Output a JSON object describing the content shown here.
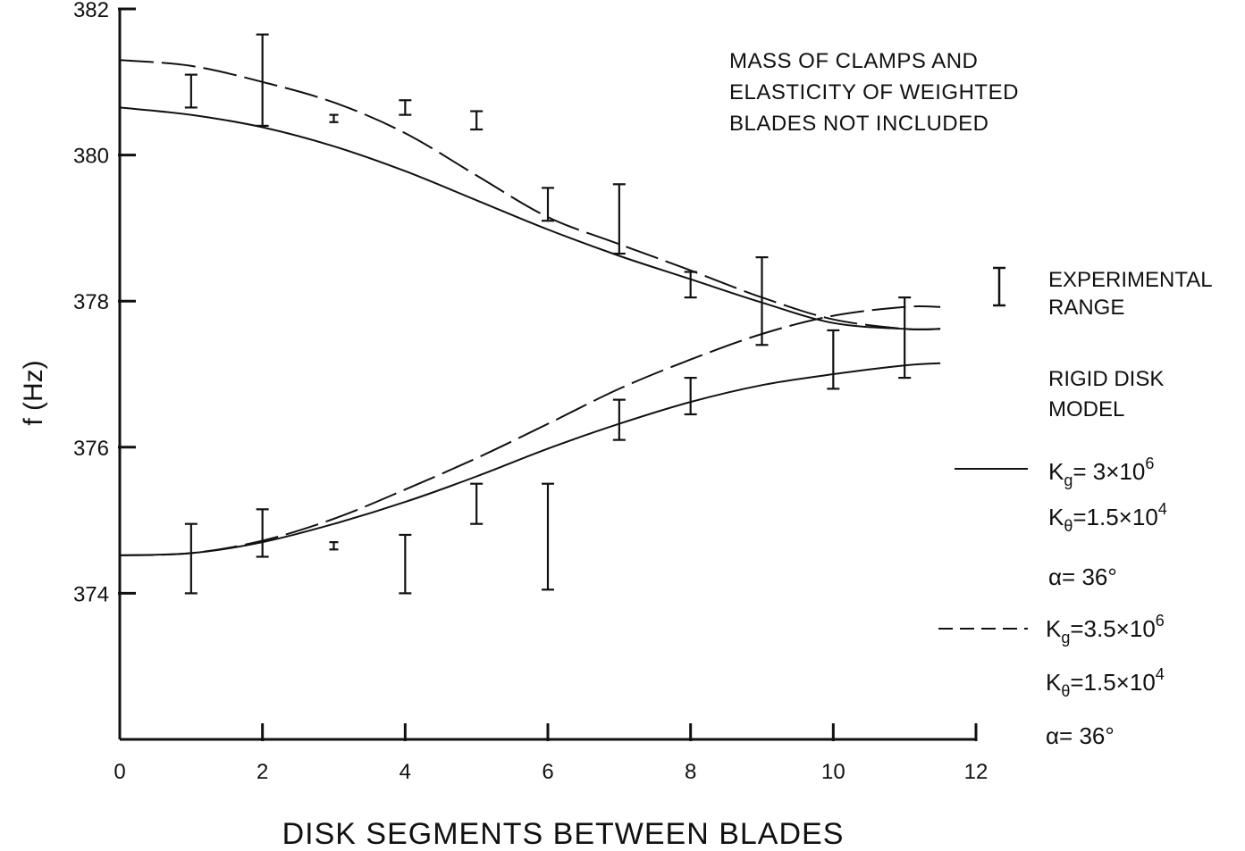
{
  "chart_data": {
    "type": "line",
    "title": "",
    "xlabel": "DISK SEGMENTS BETWEEN BLADES",
    "ylabel": "f (Hz)",
    "xlim": [
      0,
      12
    ],
    "ylim": [
      372,
      382
    ],
    "x_ticks": [
      0,
      2,
      4,
      6,
      8,
      10,
      12
    ],
    "x_tick_labels": [
      "0",
      "2",
      "4",
      "6",
      "8",
      "10",
      "12"
    ],
    "y_ticks": [
      374,
      376,
      378,
      380,
      382
    ],
    "y_tick_labels": [
      "374",
      "376",
      "378",
      "380",
      "382"
    ],
    "grid": false,
    "annotation_lines": [
      "MASS OF CLAMPS AND",
      "ELASTICITY OF WEIGHTED",
      "BLADES NOT INCLUDED"
    ],
    "legend": {
      "placement": "right",
      "experimental": [
        "EXPERIMENTAL",
        "RANGE"
      ],
      "model_heading": [
        "RIGID DISK",
        "MODEL"
      ],
      "solid": {
        "line_style": "solid",
        "params": [
          {
            "symbol": "K",
            "sub": "g",
            "text": "= 3×10",
            "sup": "6"
          },
          {
            "symbol": "K",
            "sub": "θ",
            "text": "=1.5×10",
            "sup": "4"
          },
          {
            "symbol": "α",
            "sub": "",
            "text": "= 36°",
            "sup": ""
          }
        ]
      },
      "dashed": {
        "line_style": "dashed",
        "params": [
          {
            "symbol": "K",
            "sub": "g",
            "text": "=3.5×10",
            "sup": "6"
          },
          {
            "symbol": "K",
            "sub": "θ",
            "text": "=1.5×10",
            "sup": "4"
          },
          {
            "symbol": "α",
            "sub": "",
            "text": "= 36°",
            "sup": ""
          }
        ]
      }
    },
    "series": [
      {
        "line_style": "solid",
        "x": [
          0,
          1,
          2,
          3,
          4,
          5,
          6,
          7,
          8,
          9,
          10,
          11,
          11.5
        ],
        "y": [
          380.65,
          380.55,
          380.38,
          380.12,
          379.78,
          379.38,
          378.98,
          378.62,
          378.3,
          377.98,
          377.7,
          377.62,
          377.62
        ]
      },
      {
        "line_style": "dashed",
        "x": [
          0,
          1,
          2,
          3,
          4,
          5,
          6,
          7,
          8,
          9,
          10,
          11,
          11.5
        ],
        "y": [
          381.3,
          381.22,
          381.0,
          380.72,
          380.3,
          379.72,
          379.15,
          378.78,
          378.42,
          378.05,
          377.75,
          377.62,
          377.62
        ]
      },
      {
        "line_style": "solid",
        "x": [
          0,
          1,
          2,
          3,
          4,
          5,
          6,
          7,
          8,
          9,
          10,
          11,
          11.5
        ],
        "y": [
          374.52,
          374.55,
          374.7,
          374.95,
          375.25,
          375.6,
          375.98,
          376.32,
          376.62,
          376.85,
          377.0,
          377.12,
          377.15
        ]
      },
      {
        "line_style": "dashed",
        "x": [
          0,
          1,
          2,
          3,
          4,
          5,
          6,
          7,
          8,
          9,
          10,
          11,
          11.5
        ],
        "y": [
          374.52,
          374.55,
          374.72,
          375.02,
          375.42,
          375.85,
          376.32,
          376.8,
          377.2,
          377.55,
          377.8,
          377.92,
          377.92
        ]
      }
    ],
    "experimental_ranges": [
      {
        "x": 1,
        "low": 380.65,
        "high": 381.1
      },
      {
        "x": 2,
        "low": 380.4,
        "high": 381.65
      },
      {
        "x": 3,
        "low": 380.45,
        "high": 380.55
      },
      {
        "x": 4,
        "low": 380.55,
        "high": 380.75
      },
      {
        "x": 5,
        "low": 380.35,
        "high": 380.6
      },
      {
        "x": 6,
        "low": 379.1,
        "high": 379.55
      },
      {
        "x": 7,
        "low": 378.65,
        "high": 379.6
      },
      {
        "x": 8,
        "low": 378.05,
        "high": 378.4
      },
      {
        "x": 9,
        "low": 377.4,
        "high": 378.6
      },
      {
        "x": 10,
        "low": 376.8,
        "high": 377.6
      },
      {
        "x": 11,
        "low": 376.95,
        "high": 378.05
      },
      {
        "x": 1,
        "low": 374.0,
        "high": 374.95
      },
      {
        "x": 2,
        "low": 374.5,
        "high": 375.15
      },
      {
        "x": 3,
        "low": 374.6,
        "high": 374.7
      },
      {
        "x": 4,
        "low": 374.0,
        "high": 374.8
      },
      {
        "x": 5,
        "low": 374.95,
        "high": 375.5
      },
      {
        "x": 6,
        "low": 374.05,
        "high": 375.5
      },
      {
        "x": 7,
        "low": 376.1,
        "high": 376.65
      },
      {
        "x": 8,
        "low": 376.45,
        "high": 376.95
      }
    ]
  }
}
